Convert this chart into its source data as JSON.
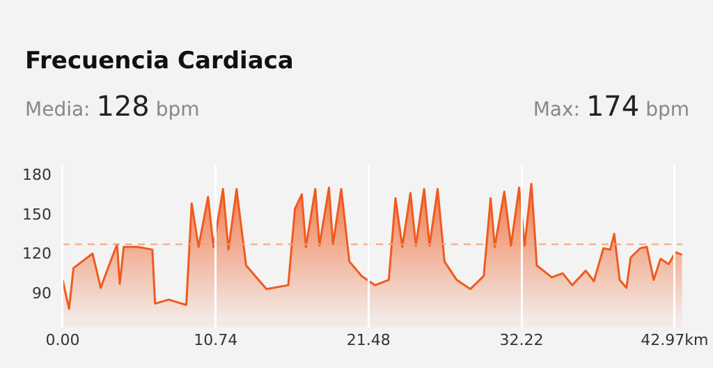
{
  "chart_data": {
    "type": "area",
    "title": "Frecuencia Cardiaca",
    "subtitle": "Media: 128 bpm",
    "annotations": [
      "Max: 174 bpm"
    ],
    "x": [
      0,
      0.45,
      0.76,
      2.1,
      2.67,
      3.15,
      3.82,
      4.01,
      4.29,
      5.25,
      6.3,
      6.49,
      7.44,
      8.68,
      9.06,
      9.54,
      10.21,
      10.59,
      11.26,
      11.64,
      12.21,
      12.88,
      14.31,
      15.84,
      16.31,
      16.79,
      17.08,
      17.74,
      18.03,
      18.7,
      18.98,
      19.56,
      20.13,
      20.99,
      21.94,
      22.9,
      23.37,
      23.85,
      24.42,
      24.8,
      25.38,
      25.76,
      26.33,
      26.81,
      27.67,
      28.62,
      29.57,
      30.05,
      30.34,
      31.01,
      31.48,
      32.05,
      32.44,
      32.91,
      33.2,
      33.29,
      34.34,
      35.11,
      35.78,
      36.73,
      37.3,
      37.97,
      38.45,
      38.73,
      39.11,
      39.59,
      39.88,
      40.55,
      41.02,
      41.5,
      41.98,
      42.55,
      43.03,
      43.5
    ],
    "series": [
      {
        "color": "#f05a1e",
        "values": [
          101,
          79,
          110,
          121,
          95,
          109,
          128,
          98,
          126,
          126,
          124,
          83,
          86,
          82,
          159,
          126,
          164,
          126,
          170,
          124,
          170,
          112,
          94,
          97,
          155,
          166,
          126,
          170,
          127,
          171,
          128,
          170,
          115,
          104,
          97,
          101,
          163,
          126,
          167,
          127,
          170,
          127,
          170,
          115,
          101,
          94,
          104,
          163,
          126,
          168,
          127,
          171,
          127,
          174,
          128,
          112,
          103,
          106,
          97,
          108,
          100,
          125,
          124,
          136,
          101,
          95,
          118,
          125,
          126,
          101,
          117,
          113,
          122,
          120
        ]
      }
    ],
    "xlim": [
      0,
      43.5
    ],
    "xticks": [
      {
        "value": 0,
        "label": "0.00"
      },
      10.74,
      21.48,
      32.22,
      {
        "value": 42.97,
        "label": "42.97km"
      }
    ],
    "ylim": [
      65,
      188
    ],
    "yticks": [
      90,
      120,
      150,
      180
    ],
    "ref_lines": [
      {
        "axis": "y",
        "value": 128,
        "label": null,
        "color": "#f4a27a",
        "line_style": "dashed"
      }
    ],
    "grid": "x",
    "legend": false
  }
}
